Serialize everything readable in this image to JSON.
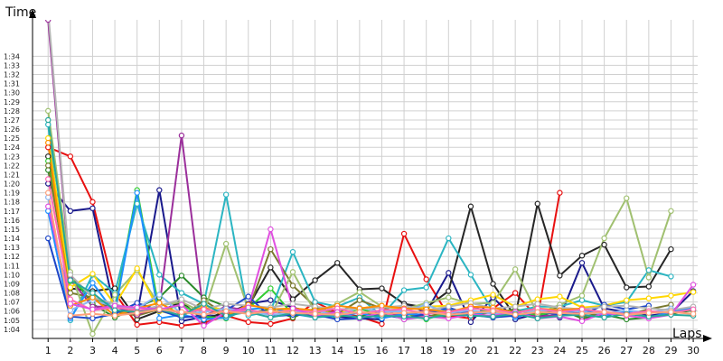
{
  "chart_data": {
    "type": "line",
    "ylabel": "Time",
    "xlabel": "Laps",
    "x_ticks": [
      "1",
      "2",
      "3",
      "4",
      "5",
      "6",
      "7",
      "8",
      "9",
      "10",
      "11",
      "12",
      "13",
      "14",
      "15",
      "16",
      "17",
      "18",
      "19",
      "20",
      "21",
      "22",
      "23",
      "24",
      "25",
      "26",
      "27",
      "28",
      "29",
      "30"
    ],
    "y_ticks": [
      "1:04",
      "1:05",
      "1:06",
      "1:07",
      "1:08",
      "1:09",
      "1:10",
      "1:11",
      "1:12",
      "1:13",
      "1:14",
      "1:15",
      "1:16",
      "1:17",
      "1:18",
      "1:19",
      "1:20",
      "1:21",
      "1:22",
      "1:23",
      "1:24",
      "1:25",
      "1:26",
      "1:27",
      "1:28",
      "1:29",
      "1:30",
      "1:31",
      "1:32",
      "1:33",
      "1:34"
    ],
    "ylim_seconds": [
      63,
      98
    ],
    "xlim": [
      0.3,
      30.2
    ],
    "y_unit": "seconds",
    "grid": true,
    "series": [
      {
        "color": "#e81010",
        "values": [
          84,
          83,
          78,
          68,
          64.5,
          64.8,
          64.4,
          64.7,
          65.5,
          64.8,
          64.6,
          65.2,
          67,
          65.8,
          65.4,
          64.6,
          74.5,
          69.5,
          65.5,
          65.2,
          66.3,
          68,
          65.3,
          79
        ]
      },
      {
        "color": "#1a1a8c",
        "values": [
          80,
          77,
          77.3,
          66,
          65.6,
          79.3,
          64.9,
          65.4,
          65.6,
          66.8,
          67.2,
          66.4,
          65.8,
          65.4,
          65.2,
          65.1,
          66.8,
          65.9,
          70.2,
          64.8,
          67.5,
          65.1,
          65.7,
          65.3,
          71.3,
          66.3,
          65.9,
          65.5,
          65.8,
          68.2
        ]
      },
      {
        "color": "#262626",
        "values": [
          83,
          68.5,
          68.2,
          68.5,
          65.1,
          66,
          67,
          65,
          66,
          66.5,
          70.8,
          67.3,
          69.4,
          71.3,
          68.4,
          68.5,
          66.8,
          66.4,
          68.2,
          77.5,
          69,
          65.4,
          77.8,
          69.9,
          72.1,
          73.3,
          68.6,
          68.7,
          72.8
        ]
      },
      {
        "color": "#2a8a2a",
        "values": [
          81.5,
          70,
          66.8,
          65.3,
          66.4,
          67.5,
          69.9,
          67.5,
          66.5,
          65.8,
          66.2,
          65.3,
          66.3,
          65.5,
          65.4,
          66,
          65.1,
          65.5,
          65.4,
          66.5,
          65.8,
          66.2,
          65.7,
          66.2,
          65.2,
          65.6,
          65.1,
          65.3,
          65.7,
          66.1
        ]
      },
      {
        "color": "#33cc33",
        "values": [
          82.5,
          69.3,
          67.6,
          66.3,
          79.3,
          66,
          66.7,
          65.4,
          65.2,
          66.3,
          68.5,
          65.6,
          65.8,
          65.3,
          66.3,
          65.5,
          65.8,
          65.1,
          65.9,
          65.8,
          66.1,
          65.7,
          65.6,
          65.9
        ]
      },
      {
        "color": "#2bb5c2",
        "values": [
          86.5,
          65,
          70,
          68,
          77.8,
          70,
          68,
          66.8,
          78.8,
          65.5,
          66,
          72.5,
          67,
          66.5,
          67.5,
          65.5,
          68.3,
          68.6,
          74,
          70,
          66,
          66,
          66.5,
          66.5,
          67.2,
          66.6,
          67,
          70.5,
          69.8
        ]
      },
      {
        "color": "#7a7a30",
        "values": [
          82,
          68,
          67.5,
          66,
          65.5,
          66.2,
          65.3,
          67.2,
          65.6,
          66.1,
          72.8,
          68.8,
          66.5,
          65.7,
          67.2,
          66.3,
          65.8,
          65.3,
          66.1,
          65.5,
          65.9,
          66.1,
          65.7,
          66.5,
          65.4,
          65.8,
          65.6,
          66.2,
          66.7
        ]
      },
      {
        "color": "#9b2f9b",
        "values": [
          98,
          69.5,
          66.5,
          66.5,
          65.6,
          66.5,
          85.3,
          65.5,
          66.5,
          66,
          65.8,
          66.2,
          65.4,
          66,
          65.2,
          65.8,
          65.5,
          66.1,
          65.6,
          65.9,
          65.3,
          65.7,
          65.4,
          65.6,
          65.9
        ]
      },
      {
        "color": "#a0c070",
        "values": [
          88,
          70.3,
          63.5,
          67.8,
          70.5,
          66.6,
          67,
          65.8,
          73.4,
          66.2,
          65.5,
          70.3,
          65.9,
          66.8,
          68.1,
          66.5,
          66.2,
          66.9,
          67.5,
          66.8,
          66.9,
          70.6,
          65.7,
          66.7,
          67.7,
          74,
          78.4,
          69.7,
          77
        ]
      },
      {
        "color": "#ffd700",
        "values": [
          85,
          68.6,
          70.1,
          66.7,
          70.7,
          66,
          65.5,
          66.6,
          66.1,
          65.8,
          65.9,
          66.2,
          66,
          65.7,
          66.3,
          66.6,
          66.2,
          66.5,
          66.6,
          67.2,
          67.8,
          66.5,
          67.3,
          67.6,
          66.4,
          66.6,
          67.2,
          67.4,
          67.7,
          68.1
        ]
      },
      {
        "color": "#1e90ff",
        "values": [
          77,
          65.2,
          69.1,
          65.8,
          79,
          65.2,
          65.6,
          65.1,
          65.3,
          66.2,
          66.4,
          65.7,
          65.3,
          65.5,
          65.8,
          65.2,
          65.7,
          65.6,
          66.3,
          65.5,
          66.1,
          65.3,
          66,
          65.6,
          66.2,
          65.5,
          66,
          65.3,
          65.9,
          66.4
        ]
      },
      {
        "color": "#1e46c8",
        "values": [
          74,
          65.4,
          65.2,
          65.7,
          66.9,
          66.1,
          65.3,
          65.5,
          66.1,
          67.6,
          65.4,
          65.6,
          65.6,
          65.1,
          65.2,
          65.6,
          65.2,
          65.7,
          66.4,
          65.6,
          65.3,
          65.5,
          66,
          65.6,
          65.6,
          66.7,
          66.2,
          66.6
        ]
      },
      {
        "color": "#8ab6f2",
        "values": [
          78.5,
          66.1,
          67.2,
          66.5,
          66.3,
          67.8,
          65.7,
          65.9,
          66.3,
          65.9,
          65.6,
          65.8,
          66.1,
          65.5,
          66.4,
          65.9,
          66,
          66.7,
          65.8,
          66.1,
          65.7,
          65.9,
          66,
          66.2,
          65.9,
          65.7,
          66.1,
          65.8,
          66.3
        ]
      },
      {
        "color": "#b5b5b5",
        "values": [
          99,
          70,
          67.5,
          66.8,
          66,
          66.6,
          67.3,
          66.2,
          66.8,
          66.6,
          66.4,
          66.8,
          66.5,
          66.2,
          66.3,
          66.4,
          66.6,
          66.1,
          66.5,
          66.9,
          66.3,
          66.5,
          66.8,
          66.4,
          66.2,
          66.5,
          66.6,
          66.3,
          66.1,
          66.5
        ]
      },
      {
        "color": "#ff8c00",
        "values": [
          84.5,
          66.6,
          67.5,
          65.5,
          66.3,
          66.9,
          65.6,
          66.4,
          65.5,
          66.7,
          66.2,
          66.3,
          66.1,
          66.6,
          66.3,
          66.6,
          66.3,
          66.2,
          65.9,
          66.5,
          66.4,
          65.8,
          66.3,
          66.1,
          66.3
        ]
      },
      {
        "color": "#ff69b4",
        "values": [
          80.5,
          67.3,
          66.1,
          66.4,
          66.1,
          66.3,
          65.8,
          66.2,
          65.9,
          66.1,
          65.8,
          66.1,
          65.9,
          66.3,
          65.7,
          66.1,
          66.2,
          65.7,
          65.9,
          66.3,
          66.1,
          65.8,
          66.3,
          65.9,
          66.2,
          65.9,
          65.7,
          66,
          65.8,
          66.2
        ]
      },
      {
        "color": "#e050e0",
        "values": [
          77.5,
          66.8,
          66.2,
          66.6,
          66.4,
          66.2,
          66.7,
          64.4,
          65.9,
          66.4,
          75,
          66.3,
          65.5,
          65.9,
          65.2,
          65.9,
          65.1,
          65.4,
          65.2,
          65.6,
          65.5,
          65.9,
          65.2,
          65.4,
          64.9,
          65.8,
          65.5,
          65.2,
          65.6,
          68.9
        ]
      },
      {
        "color": "#26a69a",
        "values": [
          87,
          69.4,
          68,
          66.1,
          65.9,
          66.2,
          65.5,
          66.8,
          65.5,
          65.9,
          65.3,
          65.8,
          65.3,
          65.6,
          65.3,
          65.5,
          65.4,
          65.2,
          65.6,
          65.5,
          65.4,
          65.7,
          65.2,
          65.5,
          65.6,
          65.3,
          65.7,
          65.4,
          65.6,
          65.5
        ]
      },
      {
        "color": "#ffa07a",
        "values": [
          79,
          65.5,
          65.7,
          65.5,
          65.8,
          66.2,
          65.9,
          65.6,
          66,
          65.7,
          66,
          65.8,
          65.7,
          65.6,
          65.9,
          65.7,
          65.8,
          65.9,
          65.6,
          65.8,
          66,
          65.6,
          65.9,
          65.8,
          65.7,
          65.9,
          65.6,
          65.8,
          65.9,
          65.7
        ]
      }
    ]
  }
}
